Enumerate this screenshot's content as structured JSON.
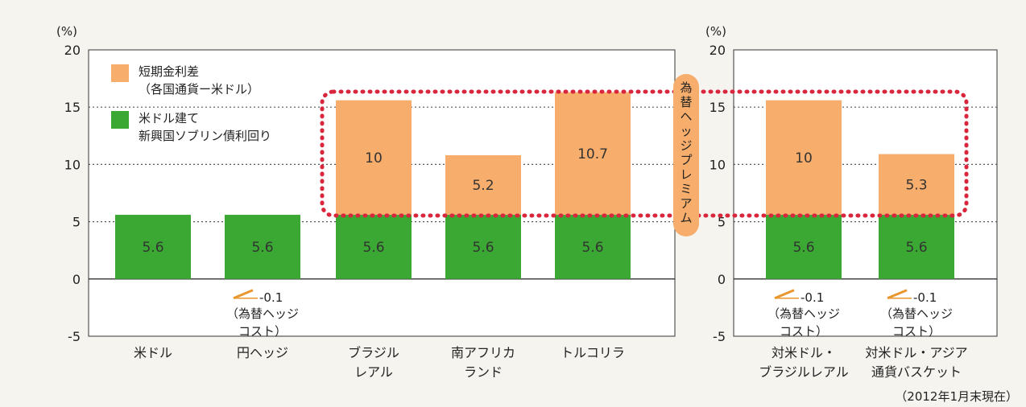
{
  "chart_data": [
    {
      "type": "bar",
      "stacked": true,
      "unit_label": "(%)",
      "ylim": [
        -5,
        20
      ],
      "yticks": [
        -5,
        0,
        5,
        10,
        15,
        20
      ],
      "categories": [
        [
          "米ドル"
        ],
        [
          "円ヘッジ"
        ],
        [
          "ブラジル",
          "レアル"
        ],
        [
          "南アフリカ",
          "ランド"
        ],
        [
          "トルコリラ"
        ]
      ],
      "series": [
        {
          "name": "米ドル建て新興国ソブリン債利回り",
          "color": "#3aa832",
          "values": [
            5.6,
            5.6,
            5.6,
            5.6,
            5.6
          ]
        },
        {
          "name": "短期金利差（各国通貨ー米ドル）",
          "color": "#f7ad6b",
          "values": [
            null,
            null,
            10.0,
            5.2,
            10.7
          ]
        }
      ],
      "annotations": [
        {
          "category_index": 1,
          "value": -0.1,
          "text": "-0.1",
          "note": [
            "（為替ヘッジ",
            "コスト）"
          ]
        }
      ],
      "legend": {
        "placement": "top-left",
        "entries": [
          {
            "lines": [
              "短期金利差",
              "（各国通貨ー米ドル）"
            ],
            "color": "#f7ad6b"
          },
          {
            "lines": [
              "米ドル建て",
              "新興国ソブリン債利回り"
            ],
            "color": "#3aa832"
          }
        ]
      },
      "grid": "dotted"
    },
    {
      "type": "bar",
      "stacked": true,
      "unit_label": "(%)",
      "ylim": [
        -5,
        20
      ],
      "yticks": [
        -5,
        0,
        5,
        10,
        15,
        20
      ],
      "categories": [
        [
          "対米ドル・",
          "ブラジルレアル"
        ],
        [
          "対米ドル・アジア",
          "通貨バスケット"
        ]
      ],
      "series": [
        {
          "name": "米ドル建て新興国ソブリン債利回り",
          "color": "#3aa832",
          "values": [
            5.6,
            5.6
          ]
        },
        {
          "name": "短期金利差（各国通貨ー米ドル）",
          "color": "#f7ad6b",
          "values": [
            10.0,
            5.3
          ]
        }
      ],
      "annotations": [
        {
          "category_index": 0,
          "value": -0.1,
          "text": "-0.1",
          "note": [
            "（為替ヘッジ",
            "コスト）"
          ]
        },
        {
          "category_index": 1,
          "value": -0.1,
          "text": "-0.1",
          "note": [
            "（為替ヘッジ",
            "コスト）"
          ]
        }
      ],
      "grid": "dotted"
    }
  ],
  "premium_label": "為替ヘッジプレミアム",
  "date_note": "（2012年1月末現在）"
}
